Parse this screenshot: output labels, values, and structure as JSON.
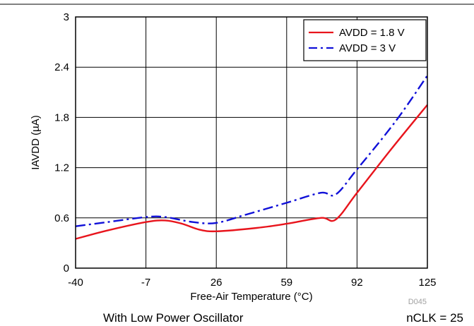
{
  "chart_data": {
    "type": "line",
    "xlabel": "Free-Air Temperature (°C)",
    "ylabel": "IAVDD (µA)",
    "xlim": [
      -40,
      125
    ],
    "ylim": [
      0,
      3
    ],
    "x_ticks": [
      "-40",
      "-7",
      "26",
      "59",
      "92",
      "125"
    ],
    "y_ticks": [
      "0",
      "0.6",
      "1.2",
      "1.8",
      "2.4",
      "3"
    ],
    "grid": true,
    "legend_position": "top-right",
    "series": [
      {
        "name": "AVDD = 1.8 V",
        "color": "#e8141c",
        "style": "solid",
        "points": [
          [
            -40,
            0.35
          ],
          [
            -25,
            0.45
          ],
          [
            -7,
            0.55
          ],
          [
            2,
            0.57
          ],
          [
            10,
            0.53
          ],
          [
            18,
            0.46
          ],
          [
            26,
            0.44
          ],
          [
            45,
            0.48
          ],
          [
            59,
            0.53
          ],
          [
            75,
            0.6
          ],
          [
            82,
            0.58
          ],
          [
            92,
            0.9
          ],
          [
            108,
            1.42
          ],
          [
            125,
            1.95
          ]
        ]
      },
      {
        "name": "AVDD = 3 V",
        "color": "#1010d8",
        "style": "dash-dot",
        "points": [
          [
            -40,
            0.5
          ],
          [
            -25,
            0.55
          ],
          [
            -7,
            0.61
          ],
          [
            2,
            0.61
          ],
          [
            15,
            0.55
          ],
          [
            26,
            0.54
          ],
          [
            40,
            0.64
          ],
          [
            59,
            0.78
          ],
          [
            75,
            0.9
          ],
          [
            82,
            0.88
          ],
          [
            92,
            1.18
          ],
          [
            110,
            1.75
          ],
          [
            125,
            2.3
          ]
        ]
      }
    ]
  },
  "footer": {
    "watermark": "D045",
    "caption_left": "With Low Power Oscillator",
    "caption_right": "nCLK = 25"
  }
}
